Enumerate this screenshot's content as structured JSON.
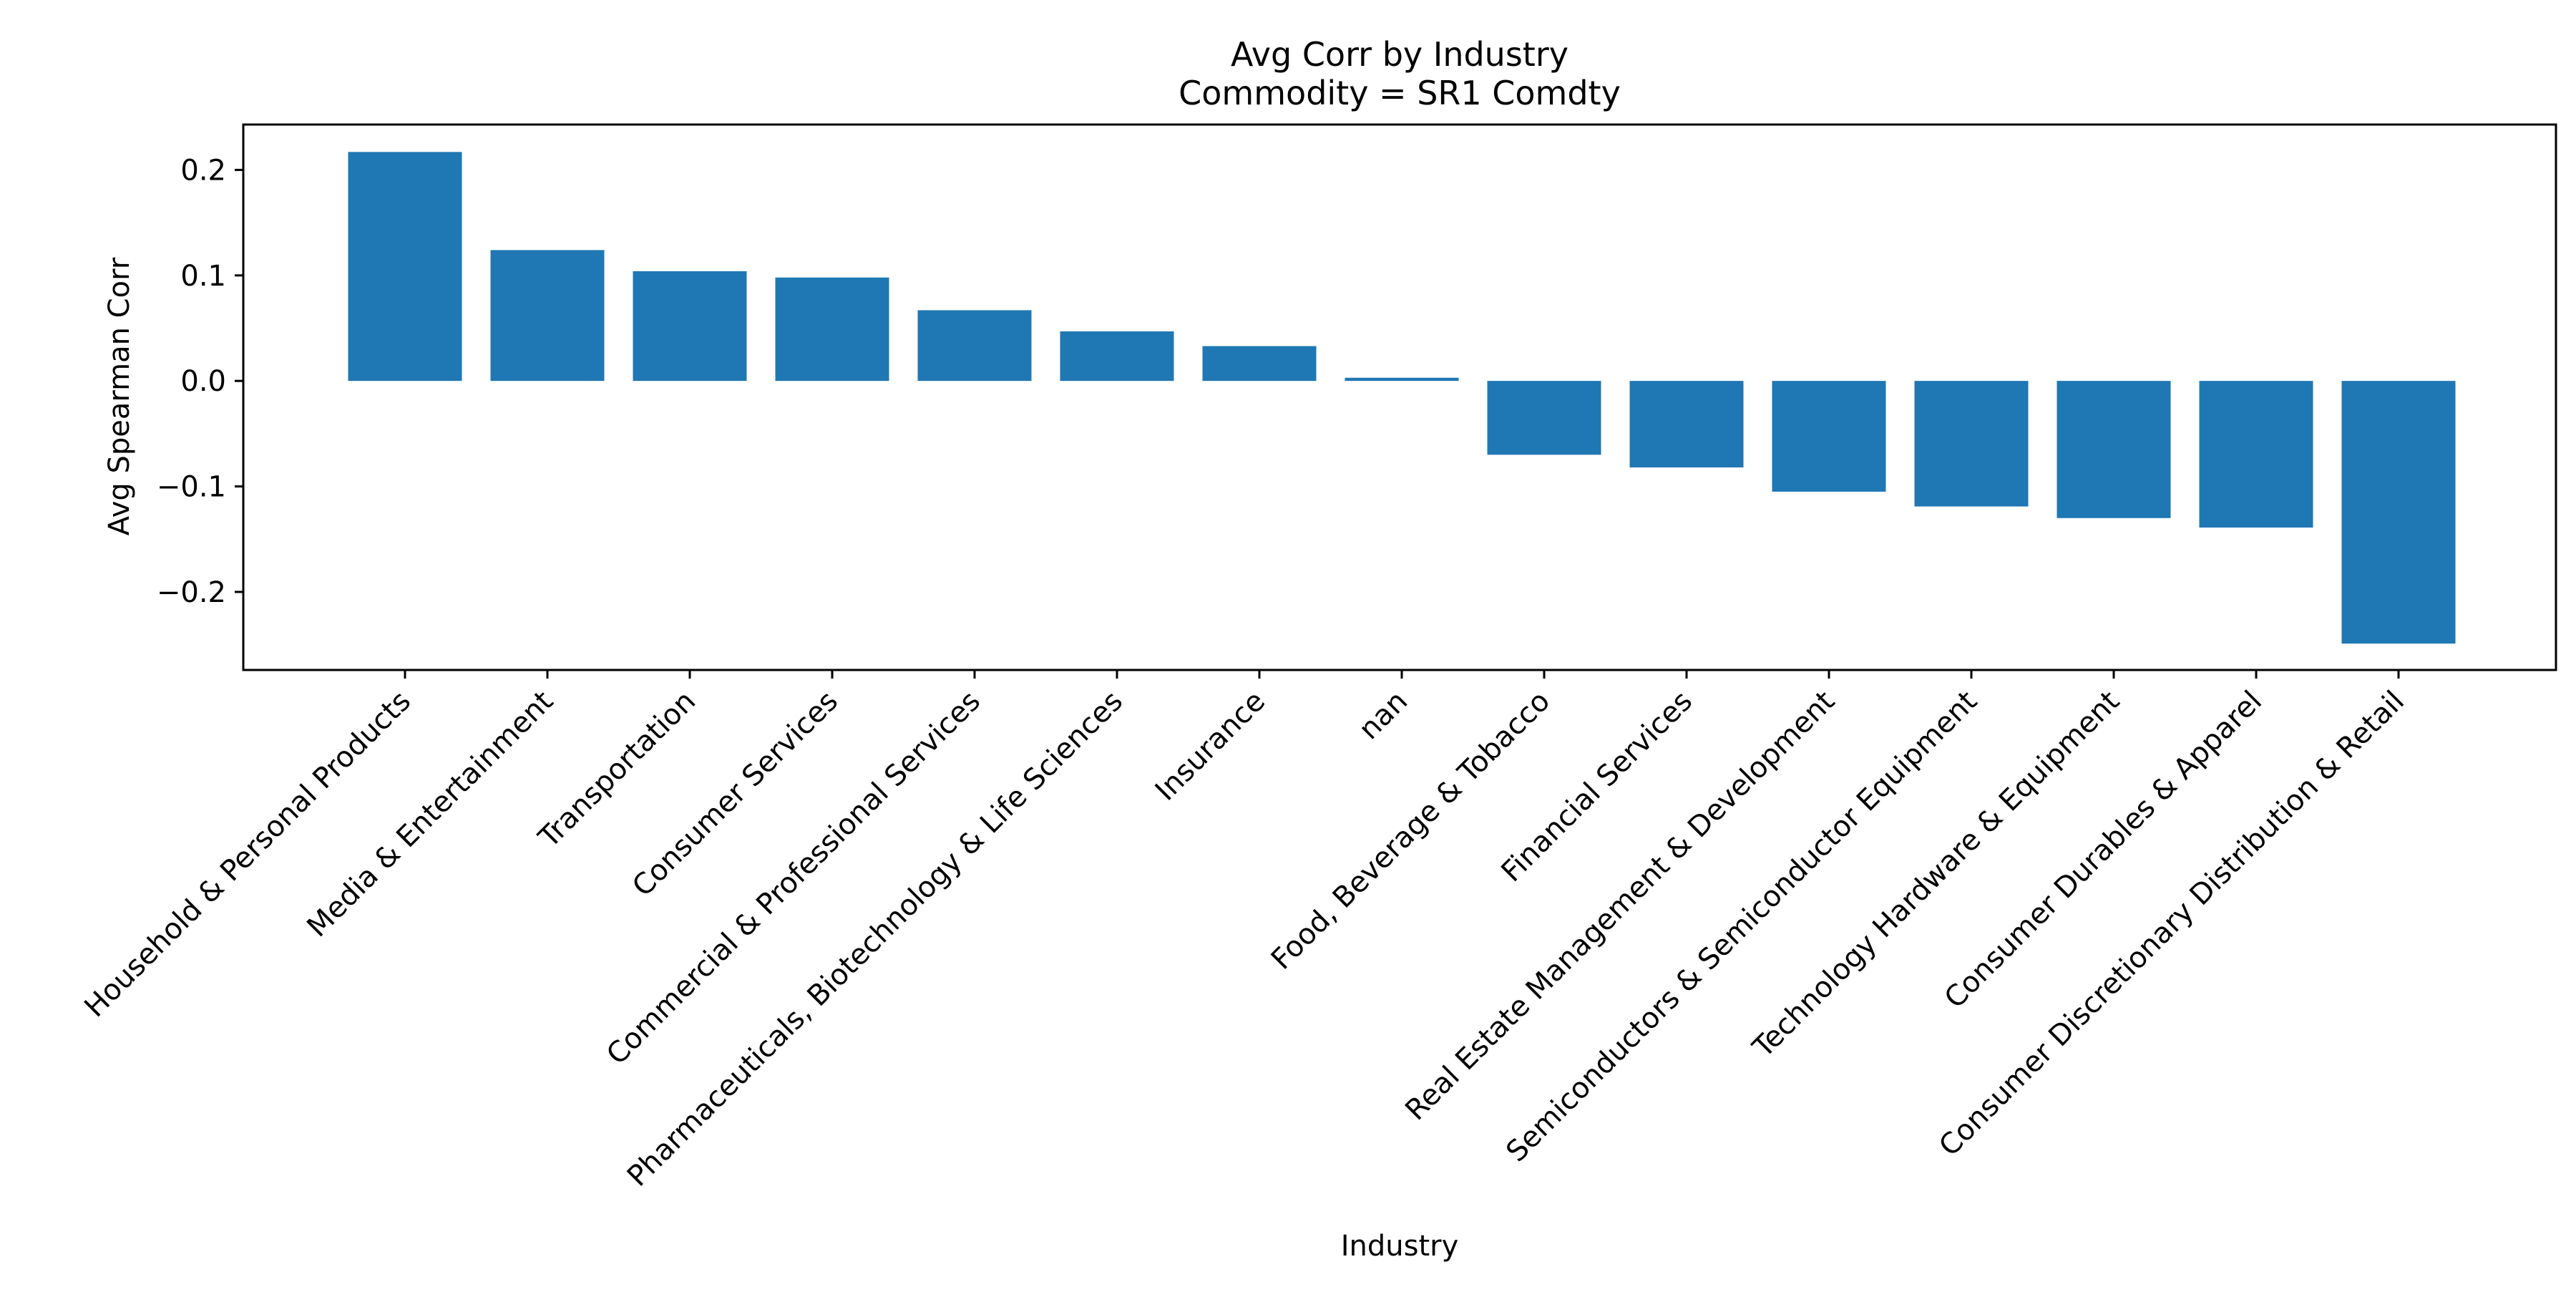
{
  "colors": {
    "bar": "#1f77b4",
    "axis": "#000000",
    "background": "#ffffff"
  },
  "chart_data": {
    "type": "bar",
    "title": "Avg Corr by Industry",
    "subtitle": "Commodity = SR1 Comdty",
    "xlabel": "Industry",
    "ylabel": "Avg Spearman Corr",
    "ylim": [
      -0.274,
      0.243
    ],
    "yticks": [
      -0.2,
      -0.1,
      0.0,
      0.1,
      0.2
    ],
    "ytick_labels": [
      "−0.2",
      "−0.1",
      "0.0",
      "0.1",
      "0.2"
    ],
    "grid": false,
    "legend": "none",
    "categories": [
      "Household & Personal Products",
      "Media & Entertainment",
      "Transportation",
      "Consumer Services",
      "Commercial & Professional Services",
      "Pharmaceuticals, Biotechnology & Life Sciences",
      "Insurance",
      "nan",
      "Food, Beverage & Tobacco",
      "Financial Services",
      "Real Estate Management & Development",
      "Semiconductors & Semiconductor Equipment",
      "Technology Hardware & Equipment",
      "Consumer Durables & Apparel",
      "Consumer Discretionary Distribution & Retail"
    ],
    "values": [
      0.217,
      0.124,
      0.104,
      0.098,
      0.067,
      0.047,
      0.033,
      0.003,
      -0.07,
      -0.082,
      -0.105,
      -0.119,
      -0.13,
      -0.139,
      -0.249
    ]
  }
}
